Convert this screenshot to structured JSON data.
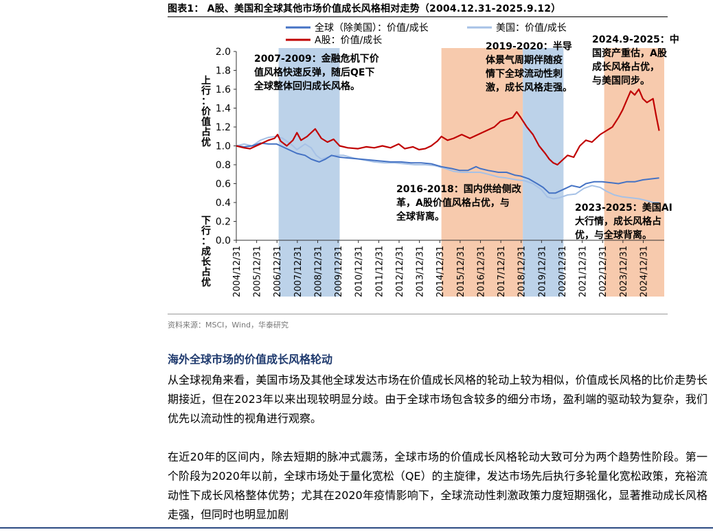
{
  "figure": {
    "title": "图表1： A股、美国和全球其他市场价值成长风格相对走势（2004.12.31-2025.9.12）",
    "source": "资料来源：MSCI，Wind，华泰研究"
  },
  "chart_data": {
    "type": "line",
    "y_top_label": "上行：价值占优",
    "y_bottom_label": "下行：成长占优",
    "ylim": [
      0,
      2.0
    ],
    "y_ticks": [
      "0.0",
      "0.2",
      "0.4",
      "0.6",
      "0.8",
      "1.0",
      "1.2",
      "1.4",
      "1.6",
      "1.8",
      "2.0"
    ],
    "x_ticks": [
      "2004/12/31",
      "2005/12/31",
      "2006/12/31",
      "2007/12/31",
      "2008/12/31",
      "2009/12/31",
      "2010/12/31",
      "2011/12/31",
      "2012/12/31",
      "2013/12/31",
      "2014/12/31",
      "2015/12/31",
      "2016/12/31",
      "2017/12/31",
      "2018/12/31",
      "2019/12/31",
      "2020/12/31",
      "2021/12/31",
      "2022/12/31",
      "2023/12/31",
      "2024/12/31"
    ],
    "legend_position": "top",
    "series": [
      {
        "name": "全球（除美国）：价值/成长",
        "color": "#4472c4",
        "points": [
          [
            2004.92,
            1.0
          ],
          [
            2005.3,
            0.99
          ],
          [
            2005.7,
            1.0
          ],
          [
            2006.1,
            1.03
          ],
          [
            2006.5,
            1.02
          ],
          [
            2006.9,
            1.02
          ],
          [
            2007.1,
            1.0
          ],
          [
            2007.5,
            0.96
          ],
          [
            2007.9,
            0.92
          ],
          [
            2008.3,
            0.9
          ],
          [
            2008.6,
            0.86
          ],
          [
            2008.85,
            0.84
          ],
          [
            2009.0,
            0.83
          ],
          [
            2009.3,
            0.86
          ],
          [
            2009.6,
            0.9
          ],
          [
            2010.0,
            0.88
          ],
          [
            2010.5,
            0.87
          ],
          [
            2011.0,
            0.86
          ],
          [
            2011.5,
            0.85
          ],
          [
            2012.0,
            0.84
          ],
          [
            2012.5,
            0.83
          ],
          [
            2013.0,
            0.83
          ],
          [
            2013.5,
            0.82
          ],
          [
            2014.0,
            0.82
          ],
          [
            2014.5,
            0.81
          ],
          [
            2015.0,
            0.78
          ],
          [
            2015.5,
            0.76
          ],
          [
            2015.9,
            0.74
          ],
          [
            2016.3,
            0.74
          ],
          [
            2016.7,
            0.78
          ],
          [
            2016.9,
            0.76
          ],
          [
            2017.3,
            0.74
          ],
          [
            2017.8,
            0.72
          ],
          [
            2018.2,
            0.72
          ],
          [
            2018.6,
            0.69
          ],
          [
            2018.9,
            0.68
          ],
          [
            2019.3,
            0.65
          ],
          [
            2019.7,
            0.6
          ],
          [
            2020.0,
            0.56
          ],
          [
            2020.3,
            0.5
          ],
          [
            2020.6,
            0.5
          ],
          [
            2021.0,
            0.54
          ],
          [
            2021.4,
            0.58
          ],
          [
            2021.8,
            0.56
          ],
          [
            2022.1,
            0.6
          ],
          [
            2022.5,
            0.62
          ],
          [
            2022.9,
            0.62
          ],
          [
            2023.3,
            0.61
          ],
          [
            2023.7,
            0.6
          ],
          [
            2024.1,
            0.62
          ],
          [
            2024.5,
            0.62
          ],
          [
            2024.9,
            0.64
          ],
          [
            2025.3,
            0.65
          ],
          [
            2025.7,
            0.66
          ]
        ]
      },
      {
        "name": "美国：价值/成长",
        "color": "#a6c1e6",
        "points": [
          [
            2004.92,
            1.0
          ],
          [
            2005.3,
            1.02
          ],
          [
            2005.7,
            1.0
          ],
          [
            2006.1,
            1.06
          ],
          [
            2006.5,
            1.09
          ],
          [
            2006.9,
            1.1
          ],
          [
            2007.2,
            1.08
          ],
          [
            2007.6,
            1.02
          ],
          [
            2007.9,
            0.96
          ],
          [
            2008.3,
            1.02
          ],
          [
            2008.6,
            0.98
          ],
          [
            2008.85,
            0.9
          ],
          [
            2009.1,
            0.86
          ],
          [
            2009.4,
            0.88
          ],
          [
            2009.8,
            0.9
          ],
          [
            2010.2,
            0.9
          ],
          [
            2010.7,
            0.87
          ],
          [
            2011.2,
            0.85
          ],
          [
            2011.7,
            0.83
          ],
          [
            2012.2,
            0.82
          ],
          [
            2012.7,
            0.82
          ],
          [
            2013.2,
            0.81
          ],
          [
            2013.7,
            0.8
          ],
          [
            2014.2,
            0.8
          ],
          [
            2014.7,
            0.79
          ],
          [
            2015.2,
            0.76
          ],
          [
            2015.6,
            0.73
          ],
          [
            2016.0,
            0.72
          ],
          [
            2016.5,
            0.72
          ],
          [
            2016.9,
            0.72
          ],
          [
            2017.3,
            0.7
          ],
          [
            2017.8,
            0.67
          ],
          [
            2018.2,
            0.66
          ],
          [
            2018.7,
            0.64
          ],
          [
            2019.1,
            0.63
          ],
          [
            2019.5,
            0.6
          ],
          [
            2019.9,
            0.54
          ],
          [
            2020.2,
            0.46
          ],
          [
            2020.5,
            0.44
          ],
          [
            2020.8,
            0.45
          ],
          [
            2021.2,
            0.48
          ],
          [
            2021.6,
            0.49
          ],
          [
            2022.0,
            0.55
          ],
          [
            2022.4,
            0.58
          ],
          [
            2022.8,
            0.56
          ],
          [
            2023.1,
            0.52
          ],
          [
            2023.5,
            0.48
          ],
          [
            2023.9,
            0.46
          ],
          [
            2024.3,
            0.45
          ],
          [
            2024.7,
            0.44
          ],
          [
            2025.1,
            0.42
          ],
          [
            2025.4,
            0.4
          ],
          [
            2025.7,
            0.4
          ]
        ]
      },
      {
        "name": "A股：价值/成长",
        "color": "#c00000",
        "points": [
          [
            2004.92,
            1.0
          ],
          [
            2005.3,
            0.98
          ],
          [
            2005.6,
            0.97
          ],
          [
            2005.9,
            1.0
          ],
          [
            2006.2,
            1.03
          ],
          [
            2006.5,
            1.06
          ],
          [
            2006.8,
            1.08
          ],
          [
            2006.95,
            1.12
          ],
          [
            2007.1,
            1.05
          ],
          [
            2007.4,
            1.0
          ],
          [
            2007.7,
            1.06
          ],
          [
            2007.9,
            1.14
          ],
          [
            2008.1,
            1.06
          ],
          [
            2008.4,
            1.1
          ],
          [
            2008.8,
            1.18
          ],
          [
            2009.1,
            1.08
          ],
          [
            2009.4,
            1.04
          ],
          [
            2009.7,
            1.07
          ],
          [
            2010.0,
            1.0
          ],
          [
            2010.4,
            0.98
          ],
          [
            2010.9,
            0.97
          ],
          [
            2011.3,
            0.99
          ],
          [
            2011.7,
            0.98
          ],
          [
            2012.1,
            1.0
          ],
          [
            2012.5,
            0.98
          ],
          [
            2012.9,
            1.02
          ],
          [
            2013.2,
            0.97
          ],
          [
            2013.6,
            0.99
          ],
          [
            2013.9,
            0.96
          ],
          [
            2014.2,
            0.97
          ],
          [
            2014.5,
            1.0
          ],
          [
            2014.8,
            1.05
          ],
          [
            2015.0,
            1.1
          ],
          [
            2015.3,
            1.06
          ],
          [
            2015.6,
            1.08
          ],
          [
            2016.0,
            1.12
          ],
          [
            2016.4,
            1.08
          ],
          [
            2016.8,
            1.12
          ],
          [
            2017.2,
            1.16
          ],
          [
            2017.6,
            1.2
          ],
          [
            2017.9,
            1.26
          ],
          [
            2018.2,
            1.28
          ],
          [
            2018.5,
            1.3
          ],
          [
            2018.7,
            1.36
          ],
          [
            2018.9,
            1.3
          ],
          [
            2019.2,
            1.2
          ],
          [
            2019.5,
            1.12
          ],
          [
            2019.8,
            1.0
          ],
          [
            2020.1,
            0.92
          ],
          [
            2020.3,
            0.86
          ],
          [
            2020.5,
            0.82
          ],
          [
            2020.7,
            0.8
          ],
          [
            2020.9,
            0.84
          ],
          [
            2021.2,
            0.9
          ],
          [
            2021.5,
            0.88
          ],
          [
            2021.8,
            1.0
          ],
          [
            2022.1,
            1.06
          ],
          [
            2022.4,
            1.04
          ],
          [
            2022.8,
            1.12
          ],
          [
            2023.1,
            1.16
          ],
          [
            2023.4,
            1.2
          ],
          [
            2023.7,
            1.3
          ],
          [
            2023.9,
            1.38
          ],
          [
            2024.1,
            1.48
          ],
          [
            2024.3,
            1.58
          ],
          [
            2024.5,
            1.54
          ],
          [
            2024.7,
            1.6
          ],
          [
            2024.9,
            1.5
          ],
          [
            2025.1,
            1.46
          ],
          [
            2025.4,
            1.5
          ],
          [
            2025.55,
            1.32
          ],
          [
            2025.7,
            1.16
          ]
        ]
      }
    ],
    "shaded_periods": [
      {
        "start": 2007.0,
        "end": 2010.0,
        "color": "#9fbfe0"
      },
      {
        "start": 2015.0,
        "end": 2019.0,
        "color": "#f4b38a"
      },
      {
        "start": 2019.0,
        "end": 2021.0,
        "color": "#9fbfe0"
      },
      {
        "start": 2023.0,
        "end": 2025.95,
        "color": "#f4b38a"
      }
    ],
    "annotations": [
      {
        "lines": [
          "2007-2009：金融危机下价",
          "值风格快速反弹，随后QE下",
          "全球整体回归成长风格。"
        ]
      },
      {
        "lines": [
          "2019-2020：半导",
          "体景气周期伴随疫",
          "情下全球流动性刺",
          "激，成长风格走强。"
        ]
      },
      {
        "lines": [
          "2024.9-2025：中",
          "国资产重估，A股",
          "成长风格占优，",
          "与美国同步。"
        ]
      },
      {
        "lines": [
          "2016-2018：国内供给侧改",
          "革，A股价值风格占优，与",
          "全球背离。"
        ]
      },
      {
        "lines": [
          "2023-2025：美国AI",
          "大行情，成长风格占",
          "优，与全球背离。"
        ]
      }
    ]
  },
  "text": {
    "section_heading": "海外全球市场的价值成长风格轮动",
    "paragraph1": "从全球视角来看，美国市场及其他全球发达市场在价值成长风格的轮动上较为相似，价值成长风格的比价走势长期接近，但在2023年以来出现较明显分歧。由于全球市场包含较多的细分市场，盈利端的驱动较为复杂，我们优先以流动性的视角进行观察。",
    "paragraph2": "在近20年的区间内，除去短期的脉冲式震荡，全球市场的价值成长风格轮动大致可分为两个趋势性阶段。第一个阶段为2020年以前，全球市场处于量化宽松（QE）的主旋律，发达市场先后执行多轮量化宽松政策，充裕流动性下成长风格整体优势；尤其在2020年疫情影响下，全球流动性刺激政策力度短期强化，显著推动成长风格走强，但同时也明显加剧"
  }
}
